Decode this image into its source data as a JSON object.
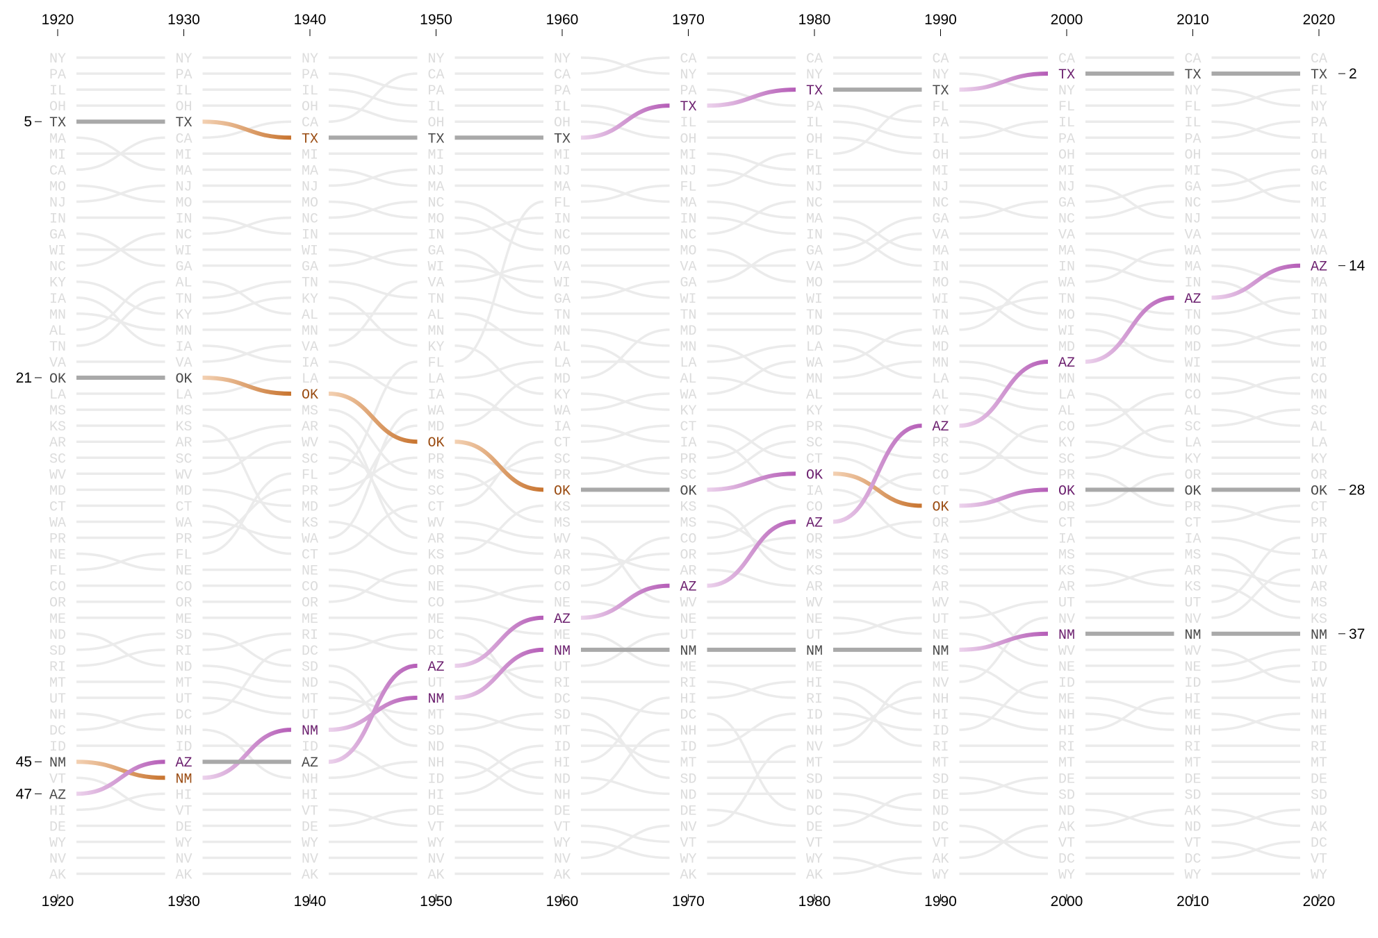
{
  "chart_data": {
    "type": "line",
    "title": "",
    "xlabel": "",
    "ylabel": "",
    "x": [
      1920,
      1930,
      1940,
      1950,
      1960,
      1970,
      1980,
      1990,
      2000,
      2010,
      2020
    ],
    "y_axis": "rank (1 at top)",
    "rankings": [
      [
        "NY",
        "PA",
        "IL",
        "OH",
        "TX",
        "MA",
        "MI",
        "CA",
        "MO",
        "NJ",
        "IN",
        "GA",
        "WI",
        "NC",
        "KY",
        "IA",
        "MN",
        "AL",
        "TN",
        "VA",
        "OK",
        "LA",
        "MS",
        "KS",
        "AR",
        "SC",
        "WV",
        "MD",
        "CT",
        "WA",
        "PR",
        "NE",
        "FL",
        "CO",
        "OR",
        "ME",
        "ND",
        "SD",
        "RI",
        "MT",
        "UT",
        "NH",
        "DC",
        "ID",
        "NM",
        "VT",
        "AZ",
        "HI",
        "DE",
        "WY",
        "NV",
        "AK"
      ],
      [
        "NY",
        "PA",
        "IL",
        "OH",
        "TX",
        "CA",
        "MI",
        "MA",
        "NJ",
        "MO",
        "IN",
        "NC",
        "WI",
        "GA",
        "AL",
        "TN",
        "KY",
        "MN",
        "IA",
        "VA",
        "OK",
        "LA",
        "MS",
        "KS",
        "AR",
        "SC",
        "WV",
        "MD",
        "CT",
        "WA",
        "PR",
        "FL",
        "NE",
        "CO",
        "OR",
        "ME",
        "SD",
        "RI",
        "ND",
        "MT",
        "UT",
        "DC",
        "NH",
        "ID",
        "AZ",
        "NM",
        "HI",
        "VT",
        "DE",
        "WY",
        "NV",
        "AK"
      ],
      [
        "NY",
        "PA",
        "IL",
        "OH",
        "CA",
        "TX",
        "MI",
        "MA",
        "NJ",
        "MO",
        "NC",
        "IN",
        "WI",
        "GA",
        "TN",
        "KY",
        "AL",
        "MN",
        "VA",
        "IA",
        "LA",
        "OK",
        "MS",
        "AR",
        "WV",
        "SC",
        "FL",
        "PR",
        "MD",
        "KS",
        "WA",
        "CT",
        "NE",
        "CO",
        "OR",
        "ME",
        "RI",
        "DC",
        "SD",
        "ND",
        "MT",
        "UT",
        "NM",
        "ID",
        "AZ",
        "NH",
        "HI",
        "VT",
        "DE",
        "WY",
        "NV",
        "AK"
      ],
      [
        "NY",
        "CA",
        "PA",
        "IL",
        "OH",
        "TX",
        "MI",
        "NJ",
        "MA",
        "NC",
        "MO",
        "IN",
        "GA",
        "WI",
        "VA",
        "TN",
        "AL",
        "MN",
        "KY",
        "FL",
        "LA",
        "IA",
        "WA",
        "MD",
        "OK",
        "PR",
        "MS",
        "SC",
        "CT",
        "WV",
        "AR",
        "KS",
        "OR",
        "NE",
        "CO",
        "ME",
        "DC",
        "RI",
        "AZ",
        "UT",
        "NM",
        "MT",
        "SD",
        "ND",
        "NH",
        "ID",
        "HI",
        "DE",
        "VT",
        "WY",
        "NV",
        "AK"
      ],
      [
        "NY",
        "CA",
        "PA",
        "IL",
        "OH",
        "TX",
        "MI",
        "NJ",
        "MA",
        "FL",
        "IN",
        "NC",
        "MO",
        "VA",
        "WI",
        "GA",
        "TN",
        "MN",
        "AL",
        "LA",
        "MD",
        "KY",
        "WA",
        "IA",
        "CT",
        "SC",
        "PR",
        "OK",
        "KS",
        "MS",
        "WV",
        "AR",
        "OR",
        "CO",
        "NE",
        "AZ",
        "ME",
        "NM",
        "UT",
        "RI",
        "DC",
        "SD",
        "MT",
        "ID",
        "HI",
        "ND",
        "NH",
        "DE",
        "VT",
        "WY",
        "NV",
        "AK"
      ],
      [
        "CA",
        "NY",
        "PA",
        "TX",
        "IL",
        "OH",
        "MI",
        "NJ",
        "FL",
        "MA",
        "IN",
        "NC",
        "MO",
        "VA",
        "GA",
        "WI",
        "TN",
        "MD",
        "MN",
        "LA",
        "AL",
        "WA",
        "KY",
        "CT",
        "IA",
        "PR",
        "SC",
        "OK",
        "KS",
        "MS",
        "CO",
        "OR",
        "AR",
        "AZ",
        "WV",
        "NE",
        "UT",
        "NM",
        "ME",
        "RI",
        "HI",
        "DC",
        "NH",
        "ID",
        "MT",
        "SD",
        "ND",
        "DE",
        "NV",
        "VT",
        "WY",
        "AK"
      ],
      [
        "CA",
        "NY",
        "TX",
        "PA",
        "IL",
        "OH",
        "FL",
        "MI",
        "NJ",
        "NC",
        "MA",
        "IN",
        "GA",
        "VA",
        "MO",
        "WI",
        "TN",
        "MD",
        "LA",
        "WA",
        "MN",
        "AL",
        "KY",
        "PR",
        "SC",
        "CT",
        "OK",
        "IA",
        "CO",
        "AZ",
        "OR",
        "MS",
        "KS",
        "AR",
        "WV",
        "NE",
        "UT",
        "NM",
        "ME",
        "HI",
        "RI",
        "ID",
        "NH",
        "NV",
        "MT",
        "SD",
        "ND",
        "DC",
        "DE",
        "VT",
        "WY",
        "AK"
      ],
      [
        "CA",
        "NY",
        "TX",
        "FL",
        "PA",
        "IL",
        "OH",
        "MI",
        "NJ",
        "NC",
        "GA",
        "VA",
        "MA",
        "IN",
        "MO",
        "WI",
        "TN",
        "WA",
        "MD",
        "MN",
        "LA",
        "AL",
        "KY",
        "AZ",
        "PR",
        "SC",
        "CO",
        "CT",
        "OK",
        "OR",
        "IA",
        "MS",
        "KS",
        "AR",
        "WV",
        "UT",
        "NE",
        "NM",
        "ME",
        "NV",
        "NH",
        "HI",
        "ID",
        "RI",
        "MT",
        "SD",
        "DE",
        "ND",
        "DC",
        "VT",
        "AK",
        "WY"
      ],
      [
        "CA",
        "TX",
        "NY",
        "FL",
        "IL",
        "PA",
        "OH",
        "MI",
        "NJ",
        "GA",
        "NC",
        "VA",
        "MA",
        "IN",
        "WA",
        "TN",
        "MO",
        "WI",
        "MD",
        "AZ",
        "MN",
        "LA",
        "AL",
        "CO",
        "KY",
        "SC",
        "PR",
        "OK",
        "OR",
        "CT",
        "IA",
        "MS",
        "KS",
        "AR",
        "UT",
        "NV",
        "NM",
        "WV",
        "NE",
        "ID",
        "ME",
        "NH",
        "HI",
        "RI",
        "MT",
        "DE",
        "SD",
        "ND",
        "AK",
        "VT",
        "DC",
        "WY"
      ],
      [
        "CA",
        "TX",
        "NY",
        "FL",
        "IL",
        "PA",
        "OH",
        "MI",
        "GA",
        "NC",
        "NJ",
        "VA",
        "WA",
        "MA",
        "IN",
        "AZ",
        "TN",
        "MO",
        "MD",
        "WI",
        "MN",
        "CO",
        "AL",
        "SC",
        "LA",
        "KY",
        "OR",
        "OK",
        "PR",
        "CT",
        "IA",
        "MS",
        "AR",
        "KS",
        "UT",
        "NV",
        "NM",
        "WV",
        "NE",
        "ID",
        "HI",
        "ME",
        "NH",
        "RI",
        "MT",
        "DE",
        "SD",
        "AK",
        "ND",
        "VT",
        "DC",
        "WY"
      ],
      [
        "CA",
        "TX",
        "FL",
        "NY",
        "PA",
        "IL",
        "OH",
        "GA",
        "NC",
        "MI",
        "NJ",
        "VA",
        "WA",
        "AZ",
        "MA",
        "TN",
        "IN",
        "MD",
        "MO",
        "WI",
        "CO",
        "MN",
        "SC",
        "AL",
        "LA",
        "KY",
        "OR",
        "OK",
        "CT",
        "PR",
        "UT",
        "IA",
        "NV",
        "AR",
        "MS",
        "KS",
        "NM",
        "NE",
        "ID",
        "WV",
        "HI",
        "NH",
        "ME",
        "RI",
        "MT",
        "DE",
        "SD",
        "ND",
        "AK",
        "DC",
        "VT",
        "WY"
      ]
    ],
    "highlighted": [
      "TX",
      "OK",
      "NM",
      "AZ"
    ],
    "rank_labels_left": [
      {
        "state": "TX",
        "rank": "5"
      },
      {
        "state": "OK",
        "rank": "21"
      },
      {
        "state": "NM",
        "rank": "45"
      },
      {
        "state": "AZ",
        "rank": "47"
      }
    ],
    "rank_labels_right": [
      {
        "state": "TX",
        "rank": "2"
      },
      {
        "state": "AZ",
        "rank": "14"
      },
      {
        "state": "OK",
        "rank": "28"
      },
      {
        "state": "NM",
        "rank": "37"
      }
    ],
    "colors": {
      "background_line": "#ebebeb",
      "background_text": "#dcdcdc",
      "flat_line": "#a9a9a9",
      "flat_text": "#4a4a4a",
      "rise_start": "#ecd3ec",
      "rise_end": "#b55db7",
      "rise_text": "#6b1f6e",
      "fall_start": "#f3d1b3",
      "fall_end": "#c8742f",
      "fall_text": "#9a4c12"
    },
    "grid": false,
    "legend": "none"
  }
}
